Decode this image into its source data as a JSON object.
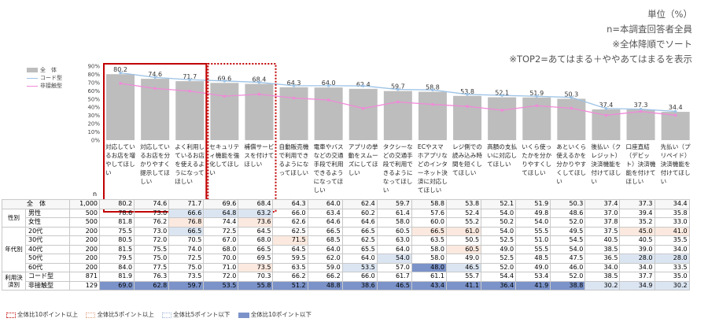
{
  "notes": {
    "unit": "単位（%）",
    "n_note": "n=本調査回答者全員",
    "sort_note": "※全体降順でソート",
    "top2_note": "※TOP2=あてはまる＋ややあてはまるを表示"
  },
  "legend": {
    "all": "全　体",
    "code": "コード型",
    "noncontact": "非接触型"
  },
  "n_label": "n",
  "footer": {
    "up10": "全体比10ポイント以上",
    "up5": "全体比5ポイント以上",
    "down5": "全体比5ポイント以下",
    "down10": "全体比10ポイント以下"
  },
  "colors": {
    "bar": "#bdbdbd",
    "line_code": "#9dc3e6",
    "line_noncontact": "#f08ad8",
    "frame_red": "#c00000"
  },
  "chart_data": {
    "type": "bar",
    "ylim": [
      0,
      90
    ],
    "ytick_labels": [
      "0%",
      "10%",
      "20%",
      "30%",
      "40%",
      "50%",
      "60%",
      "70%",
      "80%",
      "90%"
    ],
    "categories": [
      "対応しているお店を増やしてほしい",
      "対応しているお店を分かりやすく提示してほしい",
      "よく利用しているお店を使えるようになってほしい",
      "セキュリティ機能を強化してほしい",
      "補償サービスを付けてほしい",
      "自動販売機で利用できるようになってほしい",
      "電車やバスなどの交通手段で利用できるようになってほしい",
      "アプリの挙動をスムーズにしてほしい",
      "タクシーなどの交通手段で利用できるようになってほしい",
      "ECやスマホアプリなどのインターネット決済に対応してほしい",
      "レジ側での読み込み時間を短くしてほしい",
      "高額の支払いに対応してほしい",
      "いくら使ったかを分かりやすくしてほしい",
      "あといくら使えるかを分かりやすくしてほしい",
      "後払い（クレジット）決済機能を付けてほしい",
      "口座直結（デビット）決済機能を付けてほしい",
      "先払い（プリペイド）決済機能を付けてほしい"
    ],
    "series": [
      {
        "name": "全　体",
        "type": "bar",
        "values": [
          80.2,
          74.6,
          71.7,
          69.6,
          68.4,
          64.3,
          64.0,
          62.4,
          59.7,
          58.8,
          53.8,
          52.1,
          51.9,
          50.3,
          37.4,
          37.3,
          34.4
        ]
      },
      {
        "name": "コード型",
        "type": "line",
        "values": [
          81.9,
          76.3,
          73.5,
          72.0,
          70.3,
          66.2,
          66.2,
          66.0,
          61.7,
          61.1,
          55.7,
          54.4,
          53.4,
          52.0,
          38.5,
          37.7,
          35.0
        ]
      },
      {
        "name": "非接触型",
        "type": "line",
        "values": [
          69.0,
          62.8,
          59.7,
          53.5,
          55.8,
          51.2,
          48.8,
          38.6,
          46.5,
          43.4,
          41.1,
          36.4,
          41.9,
          38.8,
          30.2,
          34.9,
          30.2
        ]
      }
    ],
    "bar_value_labels": [
      "80.2",
      "74.6",
      "71.7",
      "69.6",
      "68.4",
      "64.3",
      "64.0",
      "62.4",
      "59.7",
      "58.8",
      "53.8",
      "52.1",
      "51.9",
      "50.3",
      "37.4",
      "37.3",
      "34.4"
    ],
    "highlight_solid": [
      0,
      1,
      2
    ],
    "highlight_dotted": [
      3,
      4
    ]
  },
  "table": {
    "rows": [
      {
        "group": "",
        "label": "全　体",
        "n": "1,000",
        "values": [
          "80.2",
          "74.6",
          "71.7",
          "69.6",
          "68.4",
          "64.3",
          "64.0",
          "62.4",
          "59.7",
          "58.8",
          "53.8",
          "52.1",
          "51.9",
          "50.3",
          "37.4",
          "37.3",
          "34.4"
        ],
        "hl": {}
      },
      {
        "group": "性別",
        "label": "男性",
        "n": "500",
        "values": [
          "78.6",
          "73.0",
          "66.6",
          "64.8",
          "63.2",
          "66.0",
          "63.4",
          "60.2",
          "61.4",
          "57.6",
          "52.4",
          "54.0",
          "49.8",
          "48.6",
          "37.0",
          "39.4",
          "35.8"
        ],
        "hl": {
          "2": "lo5",
          "3": "lo5",
          "4": "lo5"
        }
      },
      {
        "group": "",
        "label": "女性",
        "n": "500",
        "values": [
          "81.8",
          "76.2",
          "76.8",
          "74.4",
          "73.6",
          "62.6",
          "64.6",
          "64.6",
          "58.0",
          "60.0",
          "55.2",
          "50.2",
          "54.0",
          "52.0",
          "37.8",
          "35.2",
          "33.0"
        ],
        "hl": {
          "2": "hi5",
          "4": "hi5"
        }
      },
      {
        "group": "年代別",
        "label": "20代",
        "n": "200",
        "values": [
          "75.5",
          "73.0",
          "66.5",
          "72.5",
          "64.5",
          "62.5",
          "66.5",
          "66.5",
          "60.5",
          "66.5",
          "61.0",
          "54.0",
          "55.5",
          "49.5",
          "37.5",
          "45.0",
          "41.0"
        ],
        "hl": {
          "2": "lo5",
          "9": "hi5",
          "10": "hi5",
          "15": "hi5",
          "16": "hi5"
        }
      },
      {
        "group": "",
        "label": "30代",
        "n": "200",
        "values": [
          "80.5",
          "72.0",
          "70.5",
          "67.0",
          "68.0",
          "71.5",
          "68.5",
          "62.5",
          "63.0",
          "63.5",
          "50.5",
          "52.5",
          "51.0",
          "54.5",
          "40.5",
          "40.5",
          "35.5"
        ],
        "hl": {
          "5": "hi5"
        }
      },
      {
        "group": "",
        "label": "40代",
        "n": "200",
        "values": [
          "81.5",
          "75.5",
          "74.0",
          "68.0",
          "66.5",
          "64.5",
          "64.0",
          "65.5",
          "64.0",
          "58.0",
          "60.5",
          "49.0",
          "55.5",
          "54.0",
          "38.5",
          "39.0",
          "34.0"
        ],
        "hl": {
          "10": "hi5"
        }
      },
      {
        "group": "",
        "label": "50代",
        "n": "200",
        "values": [
          "79.5",
          "75.0",
          "72.5",
          "70.0",
          "69.5",
          "59.5",
          "62.0",
          "64.0",
          "54.0",
          "58.0",
          "49.0",
          "52.5",
          "48.5",
          "47.5",
          "36.5",
          "28.0",
          "28.0"
        ],
        "hl": {
          "8": "lo5",
          "15": "lo5",
          "16": "lo5"
        }
      },
      {
        "group": "",
        "label": "60代",
        "n": "200",
        "values": [
          "84.0",
          "77.5",
          "75.0",
          "71.0",
          "73.5",
          "63.5",
          "59.0",
          "53.5",
          "57.0",
          "48.0",
          "46.5",
          "52.0",
          "49.0",
          "46.0",
          "34.0",
          "34.0",
          "33.5"
        ],
        "hl": {
          "4": "hi5",
          "7": "lo5",
          "9": "lo10",
          "10": "lo5"
        }
      },
      {
        "group": "利用決済別",
        "label": "コード型",
        "n": "871",
        "values": [
          "81.9",
          "76.3",
          "73.5",
          "72.0",
          "70.3",
          "66.2",
          "66.2",
          "66.0",
          "61.7",
          "61.1",
          "55.7",
          "54.4",
          "53.4",
          "52.0",
          "38.5",
          "37.7",
          "35.0"
        ],
        "hl": {}
      },
      {
        "group": "",
        "label": "非接触型",
        "n": "129",
        "values": [
          "69.0",
          "62.8",
          "59.7",
          "53.5",
          "55.8",
          "51.2",
          "48.8",
          "38.6",
          "46.5",
          "43.4",
          "41.1",
          "36.4",
          "41.9",
          "38.8",
          "30.2",
          "34.9",
          "30.2"
        ],
        "hl": {
          "0": "lo10",
          "1": "lo10",
          "2": "lo10",
          "3": "lo10",
          "4": "lo10",
          "5": "lo10",
          "6": "lo10",
          "7": "lo10",
          "8": "lo10",
          "9": "lo10",
          "10": "lo10",
          "11": "lo10",
          "12": "lo10",
          "13": "lo10",
          "14": "lo5",
          "15": "lo5",
          "16": "lo5"
        }
      }
    ]
  }
}
